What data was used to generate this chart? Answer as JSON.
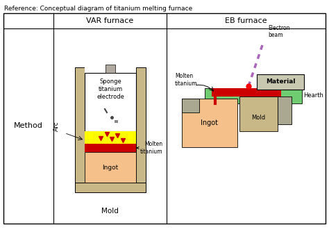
{
  "title": "Reference: Conceptual diagram of titanium melting furnace",
  "col1_header": "VAR furnace",
  "col2_header": "EB furnace",
  "row_label": "Method",
  "arc_label": "Arc",
  "bg_color": "#ffffff",
  "tan_color": "#c8b888",
  "orange_color": "#f5c08a",
  "red_color": "#cc0000",
  "yellow_color": "#ffff00",
  "green_color": "#70cc70",
  "gray_color": "#aaa890",
  "purple_color": "#aa66bb",
  "stem_color": "#b0aaa0",
  "material_color": "#c8c8b0"
}
